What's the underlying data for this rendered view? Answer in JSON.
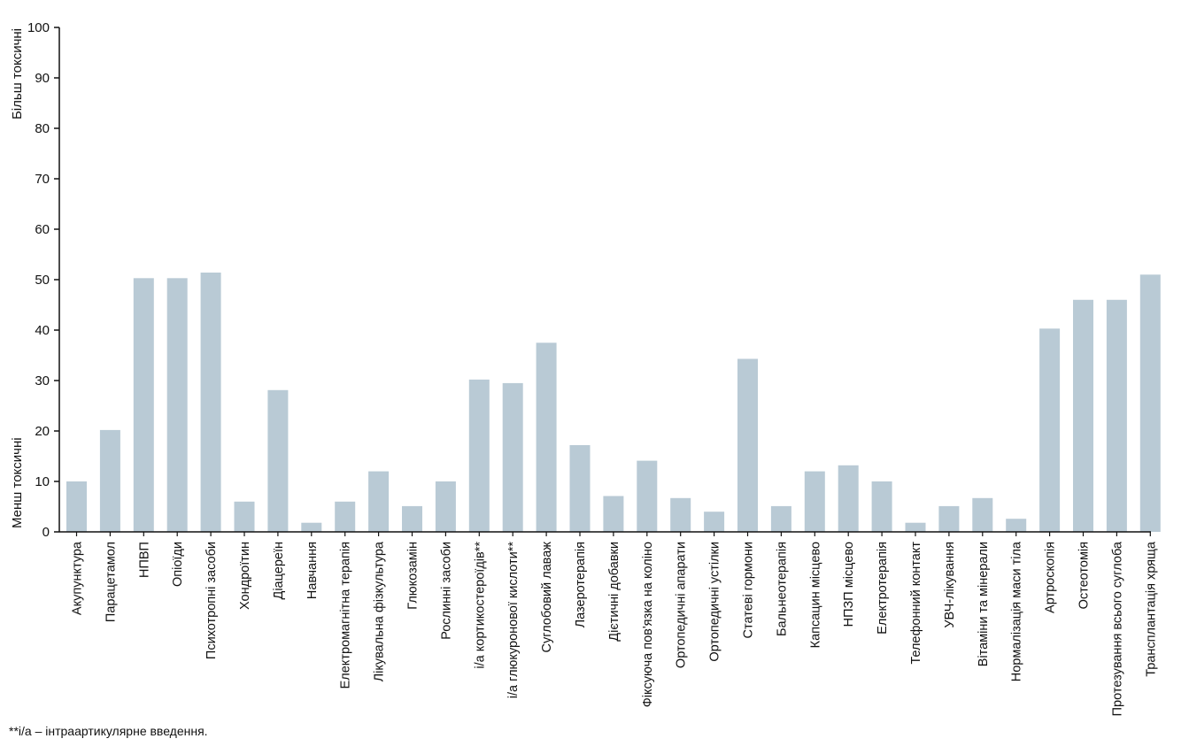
{
  "chart_data": {
    "type": "bar",
    "y_axis_top_label": "Більш токсичні",
    "y_axis_bottom_label": "Менш токсичні",
    "ylim": [
      0,
      100
    ],
    "yticks": [
      0,
      10,
      20,
      30,
      40,
      50,
      60,
      70,
      80,
      90,
      100
    ],
    "grid": false,
    "bar_color": "#b9cad5",
    "categories": [
      "Акупунктура",
      "Парацетамол",
      "НПВП",
      "Опіоїди",
      "Психотропні засоби",
      "Хондроїтин",
      "Діацереїн",
      "Навчання",
      "Електромагнітна терапія",
      "Лікувальна фізкультура",
      "Глюкозамін",
      "Рослинні засоби",
      "і/а кортикостероїдів**",
      "і/а глюкуронової кислоти**",
      "Суглобовий лаваж",
      "Лазеротерапія",
      "Дієтичні добавки",
      "Фіксуюча пов'язка на коліно",
      "Ортопедичні апарати",
      "Ортопедичні устілки",
      "Статеві гормони",
      "Бальнеотерапія",
      "Капсацин місцево",
      "НПЗП місцево",
      "Електротерапія",
      "Телефонний контакт",
      "УВЧ-лікування",
      "Вітаміни та мінерали",
      "Нормалізація маси тіла",
      "Артроскопія",
      "Остеотомія",
      "Протезування всього суглоба",
      "Трансплантація хряща"
    ],
    "values": [
      10,
      20.2,
      50.3,
      50.3,
      51.4,
      6,
      28.1,
      1.8,
      6,
      12,
      5.1,
      10,
      30.2,
      29.5,
      37.5,
      17.2,
      7.1,
      14.1,
      6.7,
      4,
      34.3,
      5.1,
      12,
      13.2,
      10,
      1.8,
      5.1,
      6.7,
      2.6,
      40.3,
      46,
      46,
      51
    ]
  },
  "footnote": "**і/а – інтраартикулярне введення."
}
